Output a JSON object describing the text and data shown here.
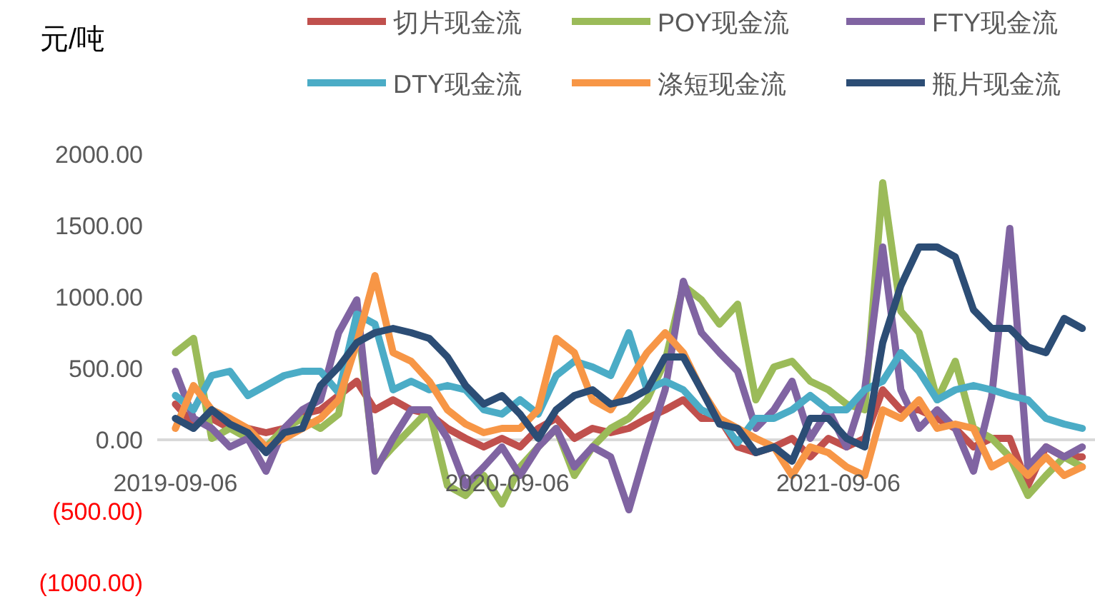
{
  "chart_data": {
    "type": "line",
    "ylabel": "元/吨",
    "x": [
      "2019-09-06",
      "2019-09-26",
      "2019-10-16",
      "2019-11-05",
      "2019-11-25",
      "2019-12-15",
      "2020-01-04",
      "2020-01-24",
      "2020-02-13",
      "2020-03-04",
      "2020-03-24",
      "2020-04-13",
      "2020-05-03",
      "2020-05-23",
      "2020-06-12",
      "2020-07-02",
      "2020-07-22",
      "2020-08-11",
      "2020-08-31",
      "2020-09-20",
      "2020-10-10",
      "2020-10-30",
      "2020-11-19",
      "2020-12-09",
      "2020-12-29",
      "2021-01-18",
      "2021-02-07",
      "2021-02-27",
      "2021-03-19",
      "2021-04-08",
      "2021-04-28",
      "2021-05-18",
      "2021-06-07",
      "2021-06-27",
      "2021-07-17",
      "2021-08-06",
      "2021-08-26",
      "2021-09-15",
      "2021-10-05",
      "2021-10-25",
      "2021-11-14",
      "2021-12-04",
      "2021-12-24",
      "2022-01-13",
      "2022-02-02",
      "2022-02-22",
      "2022-03-14",
      "2022-04-03",
      "2022-04-23",
      "2022-05-13",
      "2022-06-02"
    ],
    "series": [
      {
        "name": "切片现金流",
        "color": "#c0504d",
        "values": [
          250,
          110,
          150,
          80,
          80,
          50,
          80,
          180,
          210,
          310,
          410,
          210,
          280,
          210,
          180,
          80,
          10,
          -50,
          10,
          -50,
          80,
          150,
          10,
          80,
          50,
          80,
          150,
          210,
          280,
          150,
          150,
          -50,
          -90,
          -50,
          10,
          -120,
          10,
          -50,
          10,
          350,
          210,
          210,
          150,
          80,
          -50,
          10,
          10,
          -320,
          -50,
          -120,
          -120
        ]
      },
      {
        "name": "POY现金流",
        "color": "#9bbb59",
        "values": [
          610,
          710,
          10,
          80,
          10,
          -50,
          80,
          150,
          80,
          180,
          880,
          -190,
          -50,
          80,
          210,
          -320,
          -390,
          -250,
          -450,
          -190,
          -50,
          80,
          -250,
          -50,
          80,
          150,
          280,
          550,
          1080,
          980,
          810,
          950,
          280,
          510,
          550,
          410,
          350,
          250,
          210,
          1800,
          900,
          750,
          280,
          550,
          80,
          10,
          -120,
          -390,
          -250,
          -120,
          -190
        ]
      },
      {
        "name": "FTY现金流",
        "color": "#8064a2",
        "values": [
          480,
          150,
          80,
          -50,
          10,
          -220,
          80,
          210,
          280,
          750,
          980,
          -220,
          10,
          210,
          210,
          10,
          -320,
          -190,
          -50,
          -250,
          -50,
          80,
          -190,
          -50,
          -120,
          -490,
          -50,
          350,
          1110,
          750,
          610,
          480,
          80,
          210,
          410,
          10,
          210,
          -50,
          350,
          1350,
          350,
          80,
          210,
          80,
          -220,
          300,
          1480,
          -190,
          -50,
          -120,
          -50
        ]
      },
      {
        "name": "DTY现金流",
        "color": "#4bacc6",
        "values": [
          310,
          210,
          450,
          480,
          310,
          380,
          450,
          480,
          480,
          330,
          880,
          810,
          350,
          410,
          350,
          380,
          350,
          210,
          180,
          280,
          180,
          450,
          550,
          510,
          450,
          750,
          350,
          410,
          350,
          210,
          150,
          -20,
          150,
          150,
          210,
          310,
          210,
          210,
          350,
          410,
          610,
          480,
          280,
          350,
          380,
          350,
          310,
          280,
          150,
          110,
          80
        ]
      },
      {
        "name": "涤短现金流",
        "color": "#f79646",
        "values": [
          80,
          380,
          210,
          150,
          80,
          -50,
          10,
          80,
          150,
          280,
          680,
          1150,
          610,
          550,
          410,
          210,
          110,
          50,
          80,
          80,
          210,
          710,
          610,
          280,
          210,
          410,
          610,
          750,
          610,
          350,
          150,
          80,
          10,
          -50,
          -250,
          -50,
          -90,
          -190,
          -250,
          210,
          150,
          280,
          80,
          110,
          80,
          -190,
          -120,
          -250,
          -120,
          -250,
          -190
        ]
      },
      {
        "name": "瓶片现金流",
        "color": "#2c4d75",
        "values": [
          150,
          80,
          210,
          110,
          50,
          -90,
          50,
          80,
          380,
          510,
          680,
          750,
          780,
          750,
          710,
          580,
          380,
          250,
          310,
          180,
          10,
          210,
          310,
          350,
          250,
          280,
          350,
          580,
          580,
          350,
          110,
          80,
          -90,
          -50,
          -150,
          150,
          150,
          10,
          -50,
          680,
          1080,
          1350,
          1350,
          1280,
          910,
          780,
          780,
          650,
          610,
          850,
          780
        ]
      }
    ],
    "xlim": [
      "2019-08-17",
      "2022-06-16"
    ],
    "xticks": [
      {
        "value": "2019-09-06",
        "label": "2019-09-06"
      },
      {
        "value": "2020-09-06",
        "label": "2020-09-06"
      },
      {
        "value": "2021-09-06",
        "label": "2021-09-06"
      }
    ],
    "ylim": [
      -1000,
      2000
    ],
    "yticks": [
      {
        "value": 2000,
        "label": "2000.00"
      },
      {
        "value": 1500,
        "label": "1500.00"
      },
      {
        "value": 1000,
        "label": "1000.00"
      },
      {
        "value": 500,
        "label": "500.00"
      },
      {
        "value": 0,
        "label": "0.00"
      },
      {
        "value": -500,
        "label": "(500.00)"
      },
      {
        "value": -1000,
        "label": "(1000.00)"
      }
    ],
    "legend": "top",
    "grid": false,
    "marker": "none",
    "line_style": "solid"
  }
}
